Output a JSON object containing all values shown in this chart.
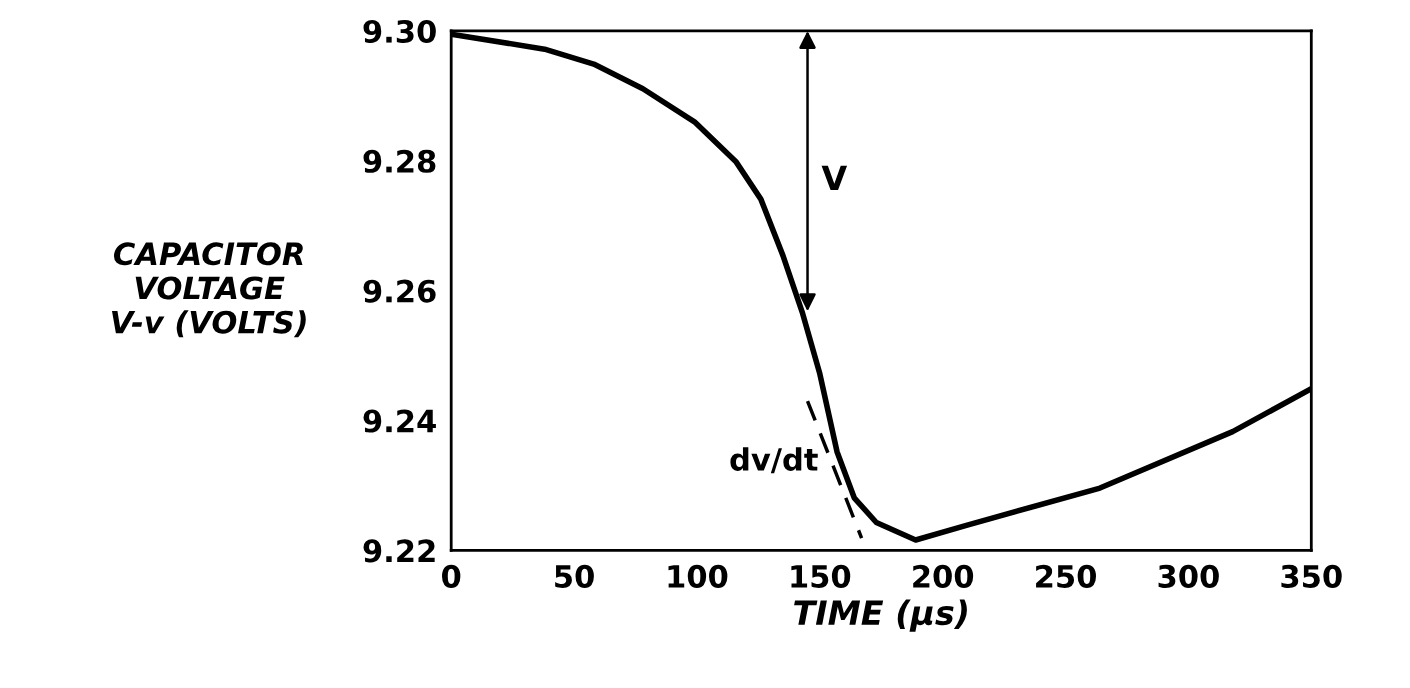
{
  "chart_data": {
    "type": "line",
    "xlabel": "TIME (µs)",
    "ylabel": "CAPACITOR\nVOLTAGE\nV-v (VOLTS)",
    "xlim": [
      0,
      350
    ],
    "ylim": [
      9.22,
      9.3
    ],
    "xticks": [
      0,
      50,
      100,
      150,
      200,
      250,
      300,
      350
    ],
    "yticks": [
      9.22,
      9.24,
      9.26,
      9.28,
      {
        "value": 9.3,
        "label": "9.30"
      }
    ],
    "grid": false,
    "legend": false,
    "series": [
      {
        "color": "#000000",
        "line_style": "solid",
        "x": [
          0,
          38,
          58,
          78,
          99,
          116,
          126,
          135,
          143,
          150,
          157,
          164,
          173,
          189,
          210,
          264,
          318,
          350
        ],
        "values": [
          9.2995,
          9.2972,
          9.2949,
          9.2911,
          9.286,
          9.2798,
          9.2741,
          9.2654,
          9.2565,
          9.2472,
          9.2352,
          9.2281,
          9.2243,
          9.2216,
          9.2239,
          9.2296,
          9.2383,
          9.2449
        ]
      },
      {
        "color": "#000000",
        "line_style": "dashed",
        "x": [
          145,
          167
        ],
        "values": [
          9.243,
          9.2219
        ]
      }
    ],
    "annotations": [
      "V",
      "dv/dt"
    ]
  }
}
